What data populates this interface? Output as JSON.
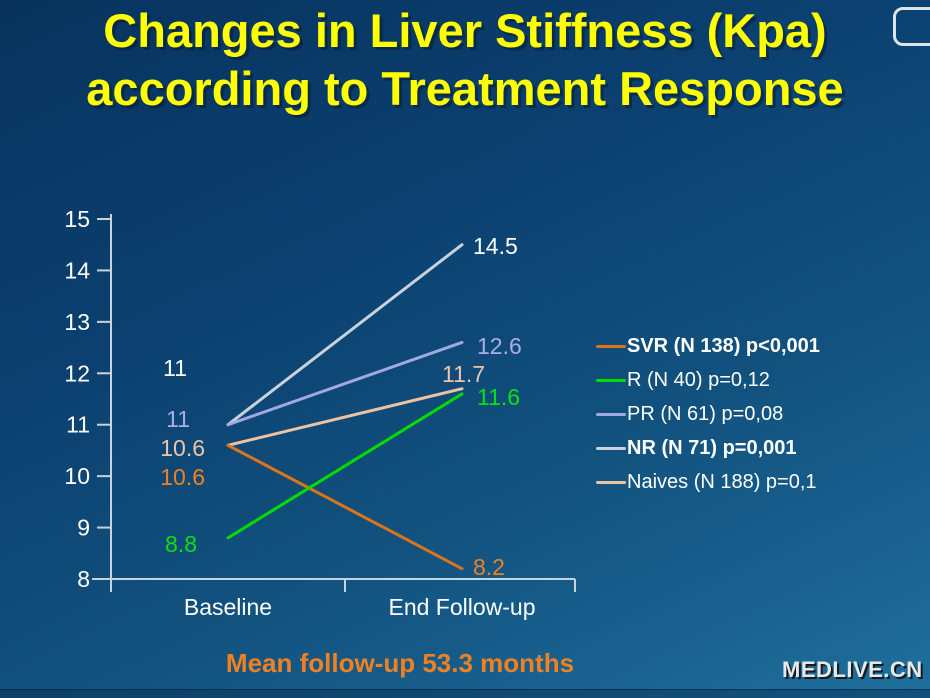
{
  "slide": {
    "title_line1": "Changes in Liver Stiffness (Kpa)",
    "title_line2": "according to Treatment Response",
    "title_color": "#FFFF00",
    "footnote": "Mean follow-up 53.3 months",
    "footnote_color": "#F08021",
    "watermark": "MEDLIVE.CN"
  },
  "chart_data": {
    "type": "line",
    "categories": [
      "Baseline",
      "End Follow-up"
    ],
    "xlabel": "",
    "ylabel": "",
    "ylim": [
      8,
      15
    ],
    "ytick_step": 1,
    "grid": false,
    "legend_position": "right",
    "axis_color": "#C9D3DD",
    "tick_label_color": "#FFFFFF",
    "series": [
      {
        "name": "SVR (N 138) p<0,001",
        "values": [
          10.6,
          8.2
        ],
        "color": "#DE7418",
        "label_color": "#F08021",
        "bold": true
      },
      {
        "name": "R (N 40) p=0,12",
        "values": [
          8.8,
          11.6
        ],
        "color": "#00DE00",
        "label_color": "#0AE010",
        "bold": false
      },
      {
        "name": "PR (N 61) p=0,08",
        "values": [
          11,
          12.6
        ],
        "color": "#A2A8E2",
        "label_color": "#A8AEE8",
        "bold": false
      },
      {
        "name": "NR (N 71) p=0,001",
        "values": [
          11,
          14.5
        ],
        "color": "#C8D1DC",
        "label_color": "#FFFFFF",
        "bold": true
      },
      {
        "name": "Naives (N 188) p=0,1",
        "values": [
          10.6,
          11.7
        ],
        "color": "#EEC3A2",
        "label_color": "#EFC4A6",
        "bold": false
      }
    ]
  }
}
